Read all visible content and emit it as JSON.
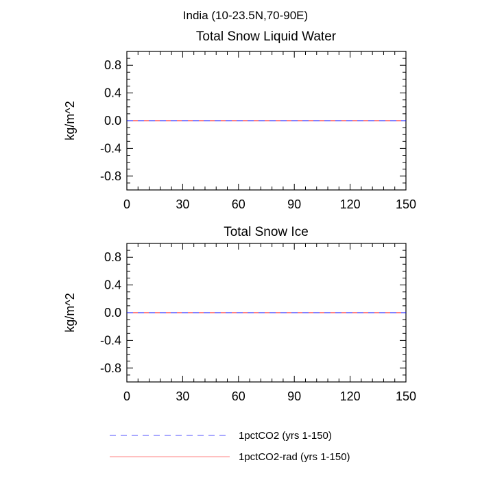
{
  "suptitle": "India (10-23.5N,70-90E)",
  "chart_data": [
    {
      "type": "line",
      "title": "Total Snow Liquid Water",
      "xlabel": "",
      "ylabel": "kg/m^2",
      "xlim": [
        0,
        150
      ],
      "ylim": [
        -1.0,
        1.0
      ],
      "x_ticks": [
        0,
        30,
        60,
        90,
        120,
        150
      ],
      "y_ticks": [
        -0.8,
        -0.4,
        0.0,
        0.4,
        0.8
      ],
      "x_tick_labels": [
        "0",
        "30",
        "60",
        "90",
        "120",
        "150"
      ],
      "y_tick_labels": [
        "-0.8",
        "-0.4",
        "0.0",
        "0.4",
        "0.8"
      ],
      "grid": false,
      "series": [
        {
          "name": "1pctCO2 (yrs 1-150)",
          "x": [
            0,
            150
          ],
          "y": [
            0.0,
            0.0
          ],
          "color": "#0000ff",
          "dash": "dashed"
        },
        {
          "name": "1pctCO2-rad (yrs 1-150)",
          "x": [
            0,
            150
          ],
          "y": [
            0.0,
            0.0
          ],
          "color": "#ff0000",
          "dash": "solid"
        }
      ]
    },
    {
      "type": "line",
      "title": "Total Snow Ice",
      "xlabel": "",
      "ylabel": "kg/m^2",
      "xlim": [
        0,
        150
      ],
      "ylim": [
        -1.0,
        1.0
      ],
      "x_ticks": [
        0,
        30,
        60,
        90,
        120,
        150
      ],
      "y_ticks": [
        -0.8,
        -0.4,
        0.0,
        0.4,
        0.8
      ],
      "x_tick_labels": [
        "0",
        "30",
        "60",
        "90",
        "120",
        "150"
      ],
      "y_tick_labels": [
        "-0.8",
        "-0.4",
        "0.0",
        "0.4",
        "0.8"
      ],
      "grid": false,
      "series": [
        {
          "name": "1pctCO2 (yrs 1-150)",
          "x": [
            0,
            150
          ],
          "y": [
            0.0,
            0.0
          ],
          "color": "#0000ff",
          "dash": "dashed"
        },
        {
          "name": "1pctCO2-rad (yrs 1-150)",
          "x": [
            0,
            150
          ],
          "y": [
            0.0,
            0.0
          ],
          "color": "#ff0000",
          "dash": "solid"
        }
      ]
    }
  ],
  "legend": {
    "placement": "bottom",
    "items": [
      {
        "label": "1pctCO2 (yrs 1-150)",
        "color": "#0000ff",
        "dash": "dashed"
      },
      {
        "label": "1pctCO2-rad (yrs 1-150)",
        "color": "#ff0000",
        "dash": "solid"
      }
    ]
  }
}
